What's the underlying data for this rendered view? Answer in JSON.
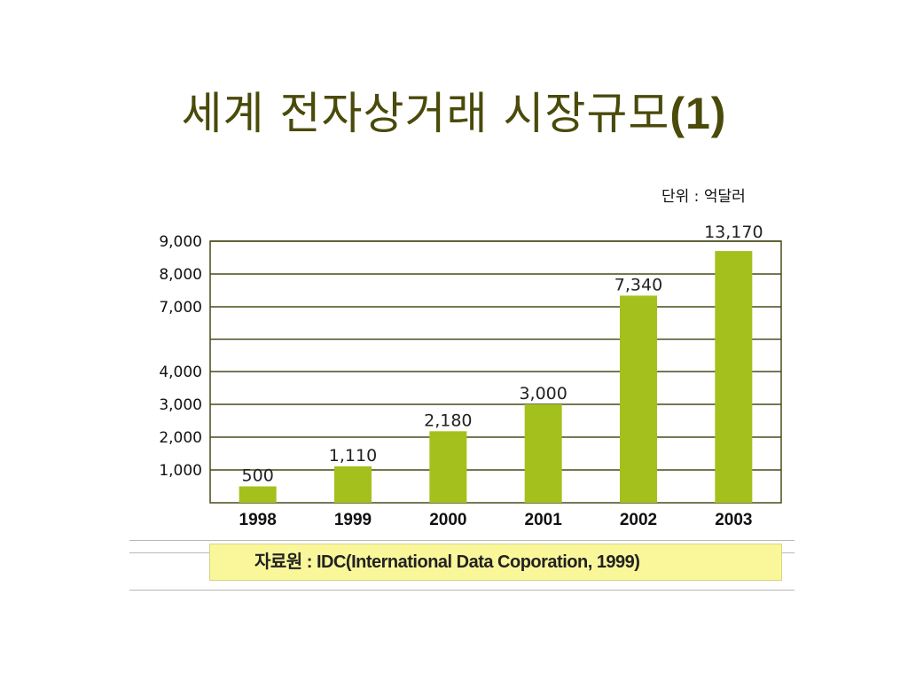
{
  "slide": {
    "title_text": "세계 전자상거래 시장규모",
    "title_number": "(1)"
  },
  "unit_label": "단위 : 억달러",
  "source_label": "자료원 : IDC(International Data Coporation, 1999)",
  "colors": {
    "bar": "#a4c01c",
    "grid": "#4a4a1a",
    "title": "#4a4a0a",
    "source_box": "#faf79a"
  },
  "chart_data": {
    "type": "bar",
    "title": "",
    "xlabel": "",
    "ylabel": "",
    "categories": [
      "1998",
      "1999",
      "2000",
      "2001",
      "2002",
      "2003"
    ],
    "values": [
      500,
      1110,
      2180,
      3000,
      7340,
      13170
    ],
    "value_labels": [
      "500",
      "1,110",
      "2,180",
      "3,000",
      "7,340",
      "13,170"
    ],
    "y_ticks": [
      {
        "value": 1000,
        "label": "1,000"
      },
      {
        "value": 2000,
        "label": "2,000"
      },
      {
        "value": 3000,
        "label": "3,000"
      },
      {
        "value": 4000,
        "label": "4,000"
      },
      {
        "value": 7000,
        "label": "7,000"
      },
      {
        "value": 8000,
        "label": "8,000"
      },
      {
        "value": 9000,
        "label": "9,000"
      }
    ],
    "axis_note": "broken axis between 4,000 and 7,000",
    "grid": true,
    "legend": "none"
  }
}
